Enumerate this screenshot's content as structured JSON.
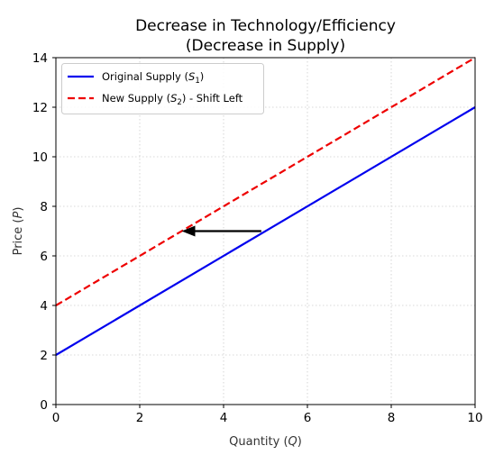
{
  "chart_data": {
    "type": "line",
    "title_line1": "Decrease in Technology/Efficiency",
    "title_line2": "(Decrease in Supply)",
    "xlabel_text": "Quantity (",
    "xlabel_var": "Q",
    "xlabel_close": ")",
    "ylabel_text": "Price (",
    "ylabel_var": "P",
    "ylabel_close": ")",
    "xlim": [
      0,
      10
    ],
    "ylim": [
      0,
      14
    ],
    "xticks": [
      0,
      2,
      4,
      6,
      8,
      10
    ],
    "yticks": [
      0,
      2,
      4,
      6,
      8,
      10,
      12,
      14
    ],
    "grid": true,
    "legend_position": "top-left",
    "series": [
      {
        "name_prefix": "Original Supply (",
        "name_var": "S",
        "name_sub": "1",
        "name_suffix": ")",
        "color": "#0000ee",
        "style": "solid",
        "x": [
          0,
          10
        ],
        "y": [
          2,
          12
        ]
      },
      {
        "name_prefix": "New Supply (",
        "name_var": "S",
        "name_sub": "2",
        "name_suffix": ") - Shift Left",
        "color": "#ee0000",
        "style": "dashed",
        "x": [
          0,
          10
        ],
        "y": [
          4,
          14
        ]
      }
    ],
    "arrow": {
      "from": [
        4.9,
        7
      ],
      "to": [
        3.0,
        7
      ],
      "color": "#000000"
    }
  }
}
